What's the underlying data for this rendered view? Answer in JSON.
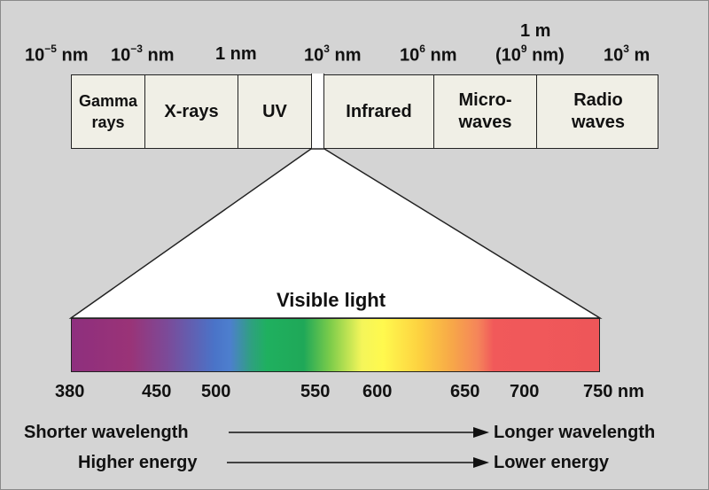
{
  "wavelength_scale": [
    {
      "base": "10",
      "exp": "−5",
      "unit": " nm"
    },
    {
      "base": "10",
      "exp": "−3",
      "unit": " nm"
    },
    {
      "base": "1",
      "exp": "",
      "unit": " nm"
    },
    {
      "base": "10",
      "exp": "3",
      "unit": " nm"
    },
    {
      "base": "10",
      "exp": "6",
      "unit": " nm"
    },
    {
      "line1": "1 m",
      "base": "(10",
      "exp": "9",
      "unit": " nm)"
    },
    {
      "base": "10",
      "exp": "3",
      "unit": " m"
    }
  ],
  "bands": [
    {
      "line1": "Gamma",
      "line2": "rays"
    },
    {
      "line1": "X-rays",
      "line2": ""
    },
    {
      "line1": "UV",
      "line2": ""
    },
    {
      "line1": "Infrared",
      "line2": ""
    },
    {
      "line1": "Micro-",
      "line2": "waves"
    },
    {
      "line1": "Radio",
      "line2": "waves"
    }
  ],
  "visible_title": "Visible light",
  "visible_ticks": [
    "380",
    "450",
    "500",
    "550",
    "600",
    "650",
    "700",
    "750 nm"
  ],
  "arrows": [
    {
      "left": "Shorter wavelength",
      "right": "Longer wavelength"
    },
    {
      "left": "Higher energy",
      "right": "Lower energy"
    }
  ],
  "colors": {
    "band_fill": "#f0efe6",
    "background": "#d4d4d4",
    "stroke": "#222222"
  }
}
